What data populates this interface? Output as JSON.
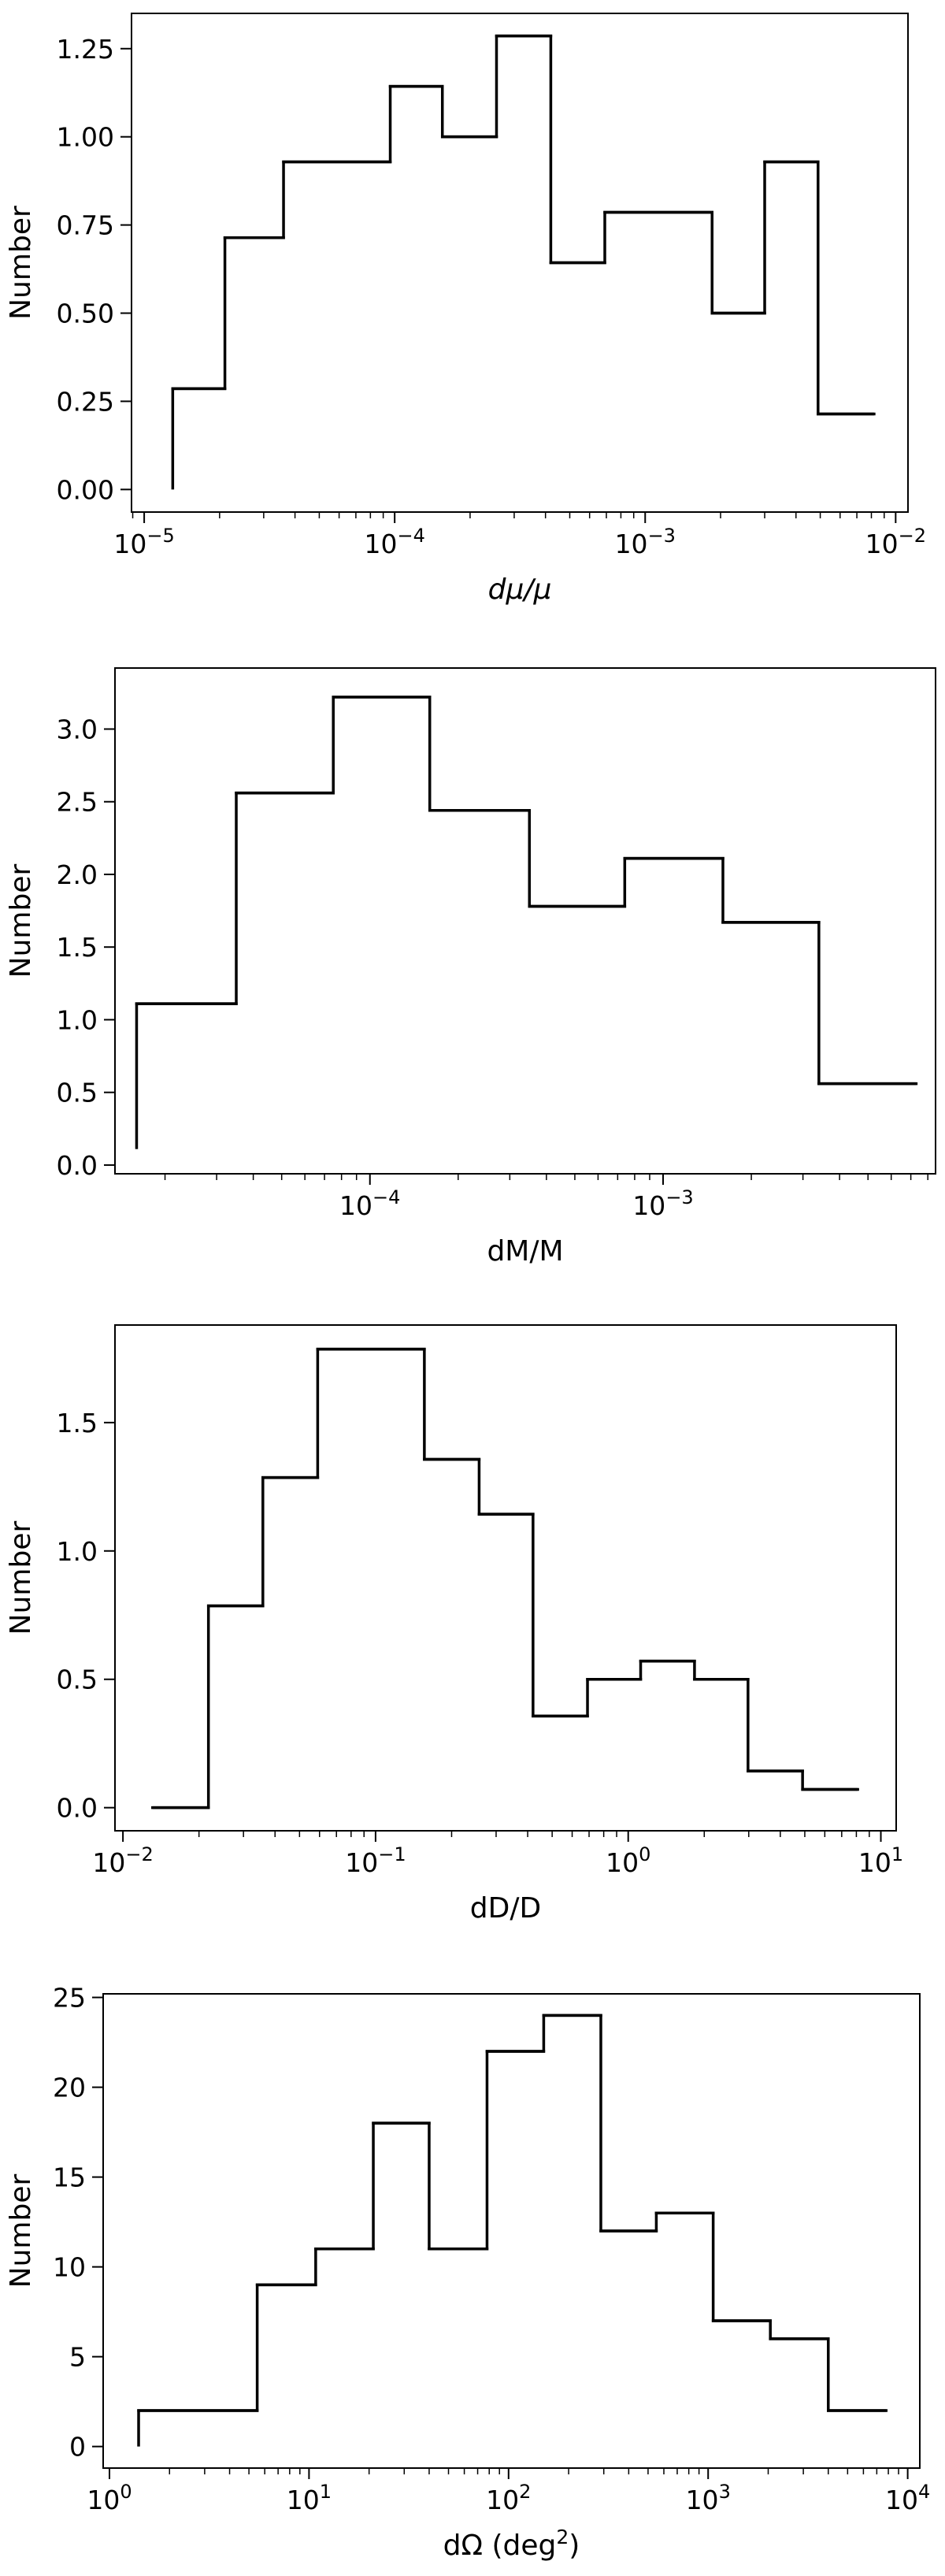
{
  "chart_data": [
    {
      "type": "histogram",
      "xscale": "log",
      "xlabel": "dμ/μ",
      "ylabel": "Number",
      "xlim": [
        8.9e-06,
        0.0112
      ],
      "ylim": [
        -0.064,
        1.35
      ],
      "x_ticks": [
        {
          "value": 1e-05,
          "base": "10",
          "exp": "−5"
        },
        {
          "value": 0.0001,
          "base": "10",
          "exp": "−4"
        },
        {
          "value": 0.001,
          "base": "10",
          "exp": "−3"
        },
        {
          "value": 0.01,
          "base": "10",
          "exp": "−2"
        }
      ],
      "y_ticks": [
        {
          "value": 0.0,
          "label": "0.00"
        },
        {
          "value": 0.25,
          "label": "0.25"
        },
        {
          "value": 0.5,
          "label": "0.50"
        },
        {
          "value": 0.75,
          "label": "0.75"
        },
        {
          "value": 1.0,
          "label": "1.00"
        },
        {
          "value": 1.25,
          "label": "1.25"
        }
      ],
      "start_value": 0.0,
      "bins": [
        {
          "x0": 1.3e-05,
          "x1": 2.1e-05,
          "value": 0.286
        },
        {
          "x0": 2.1e-05,
          "x1": 3.6e-05,
          "value": 0.714
        },
        {
          "x0": 3.6e-05,
          "x1": 9.6e-05,
          "value": 0.929
        },
        {
          "x0": 9.6e-05,
          "x1": 0.000155,
          "value": 1.143
        },
        {
          "x0": 0.000155,
          "x1": 0.000255,
          "value": 1.0
        },
        {
          "x0": 0.000255,
          "x1": 0.00042,
          "value": 1.286
        },
        {
          "x0": 0.00042,
          "x1": 0.00069,
          "value": 0.643
        },
        {
          "x0": 0.00069,
          "x1": 0.00185,
          "value": 0.786
        },
        {
          "x0": 0.00185,
          "x1": 0.003,
          "value": 0.5
        },
        {
          "x0": 0.003,
          "x1": 0.0049,
          "value": 0.929
        },
        {
          "x0": 0.0049,
          "x1": 0.0082,
          "value": 0.214
        }
      ]
    },
    {
      "type": "histogram",
      "xscale": "log",
      "xlabel": "dM/M",
      "ylabel": "Number",
      "xlim": [
        1.35e-05,
        0.0085
      ],
      "ylim": [
        -0.06,
        3.42
      ],
      "x_ticks": [
        {
          "value": 0.0001,
          "base": "10",
          "exp": "−4"
        },
        {
          "value": 0.001,
          "base": "10",
          "exp": "−3"
        }
      ],
      "y_ticks": [
        {
          "value": 0.0,
          "label": "0.0"
        },
        {
          "value": 0.5,
          "label": "0.5"
        },
        {
          "value": 1.0,
          "label": "1.0"
        },
        {
          "value": 1.5,
          "label": "1.5"
        },
        {
          "value": 2.0,
          "label": "2.0"
        },
        {
          "value": 2.5,
          "label": "2.5"
        },
        {
          "value": 3.0,
          "label": "3.0"
        }
      ],
      "start_value": 0.11,
      "bins": [
        {
          "x0": 1.6e-05,
          "x1": 3.5e-05,
          "value": 1.11
        },
        {
          "x0": 3.5e-05,
          "x1": 7.5e-05,
          "value": 2.56
        },
        {
          "x0": 7.5e-05,
          "x1": 0.00016,
          "value": 3.22
        },
        {
          "x0": 0.00016,
          "x1": 0.00035,
          "value": 2.44
        },
        {
          "x0": 0.00035,
          "x1": 0.00074,
          "value": 1.78
        },
        {
          "x0": 0.00074,
          "x1": 0.0016,
          "value": 2.11
        },
        {
          "x0": 0.0016,
          "x1": 0.0034,
          "value": 1.67
        },
        {
          "x0": 0.0034,
          "x1": 0.0073,
          "value": 0.56
        }
      ]
    },
    {
      "type": "histogram",
      "xscale": "log",
      "xlabel": "dD/D",
      "ylabel": "Number",
      "xlim": [
        0.0093,
        11.5
      ],
      "ylim": [
        -0.09,
        1.88
      ],
      "x_ticks": [
        {
          "value": 0.01,
          "base": "10",
          "exp": "−2"
        },
        {
          "value": 0.1,
          "base": "10",
          "exp": "−1"
        },
        {
          "value": 1,
          "base": "10",
          "exp": "0"
        },
        {
          "value": 10,
          "base": "10",
          "exp": "1"
        }
      ],
      "y_ticks": [
        {
          "value": 0.0,
          "label": "0.0"
        },
        {
          "value": 0.5,
          "label": "0.5"
        },
        {
          "value": 1.0,
          "label": "1.0"
        },
        {
          "value": 1.5,
          "label": "1.5"
        }
      ],
      "start_value": 0.0,
      "bins": [
        {
          "x0": 0.0131,
          "x1": 0.0218,
          "value": 0.0
        },
        {
          "x0": 0.0218,
          "x1": 0.0358,
          "value": 0.786
        },
        {
          "x0": 0.0358,
          "x1": 0.059,
          "value": 1.286
        },
        {
          "x0": 0.059,
          "x1": 0.156,
          "value": 1.786
        },
        {
          "x0": 0.156,
          "x1": 0.257,
          "value": 1.357
        },
        {
          "x0": 0.257,
          "x1": 0.42,
          "value": 1.143
        },
        {
          "x0": 0.42,
          "x1": 0.69,
          "value": 0.357
        },
        {
          "x0": 0.69,
          "x1": 1.12,
          "value": 0.5
        },
        {
          "x0": 1.12,
          "x1": 1.83,
          "value": 0.571
        },
        {
          "x0": 1.83,
          "x1": 2.98,
          "value": 0.5
        },
        {
          "x0": 2.98,
          "x1": 4.9,
          "value": 0.143
        },
        {
          "x0": 4.9,
          "x1": 8.1,
          "value": 0.071
        }
      ]
    },
    {
      "type": "histogram",
      "xscale": "log",
      "xlabel": "dΩ (deg",
      "xlabel_sup": "2",
      "xlabel_suffix": ")",
      "ylabel": "Number",
      "xlim": [
        0.93,
        11500
      ],
      "ylim": [
        -1.2,
        25.2
      ],
      "x_ticks": [
        {
          "value": 1,
          "base": "10",
          "exp": "0"
        },
        {
          "value": 10,
          "base": "10",
          "exp": "1"
        },
        {
          "value": 100,
          "base": "10",
          "exp": "2"
        },
        {
          "value": 1000,
          "base": "10",
          "exp": "3"
        },
        {
          "value": 10000,
          "base": "10",
          "exp": "4"
        }
      ],
      "y_ticks": [
        {
          "value": 0,
          "label": "0"
        },
        {
          "value": 5,
          "label": "5"
        },
        {
          "value": 10,
          "label": "10"
        },
        {
          "value": 15,
          "label": "15"
        },
        {
          "value": 20,
          "label": "20"
        },
        {
          "value": 25,
          "label": "25"
        }
      ],
      "start_value": 0,
      "bins": [
        {
          "x0": 1.4,
          "x1": 5.5,
          "value": 2
        },
        {
          "x0": 5.5,
          "x1": 10.8,
          "value": 9
        },
        {
          "x0": 10.8,
          "x1": 21,
          "value": 11
        },
        {
          "x0": 21,
          "x1": 40,
          "value": 18
        },
        {
          "x0": 40,
          "x1": 78,
          "value": 11
        },
        {
          "x0": 78,
          "x1": 150,
          "value": 22
        },
        {
          "x0": 150,
          "x1": 290,
          "value": 24
        },
        {
          "x0": 290,
          "x1": 550,
          "value": 12
        },
        {
          "x0": 550,
          "x1": 1060,
          "value": 13
        },
        {
          "x0": 1060,
          "x1": 2050,
          "value": 7
        },
        {
          "x0": 2050,
          "x1": 4000,
          "value": 6
        },
        {
          "x0": 4000,
          "x1": 7800,
          "value": 2
        }
      ]
    }
  ]
}
